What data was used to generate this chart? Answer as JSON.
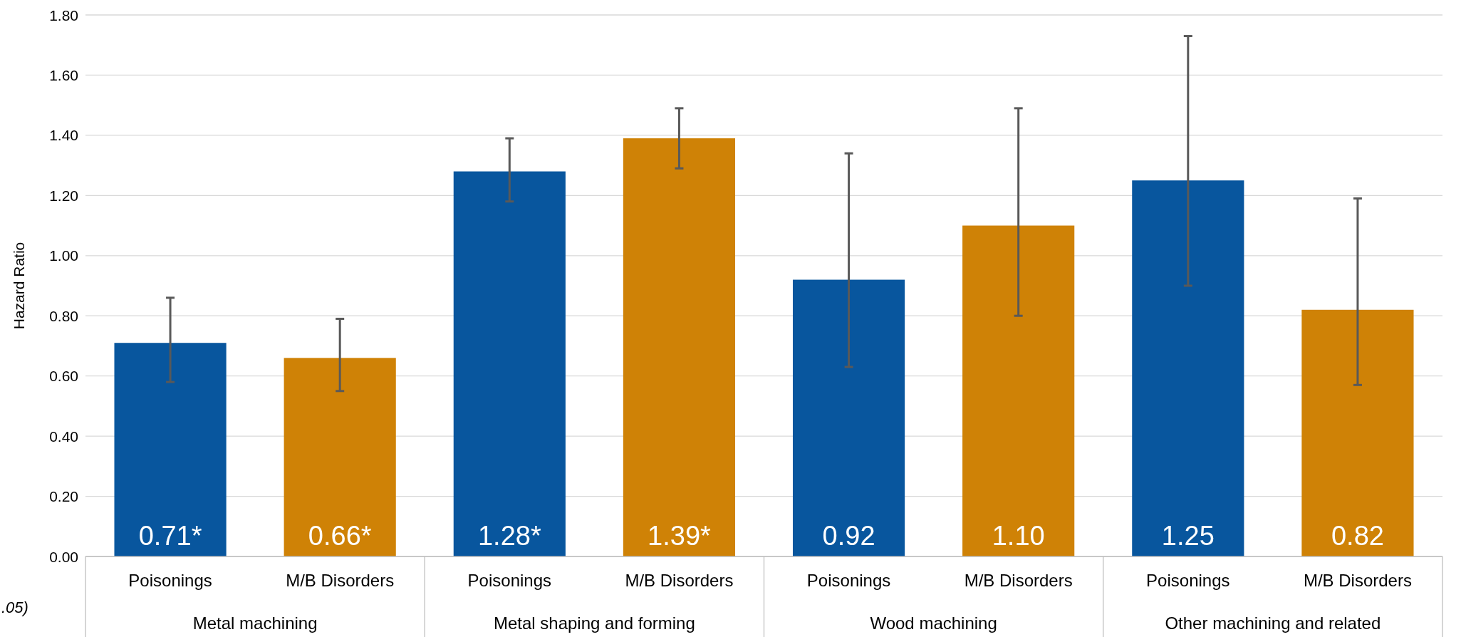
{
  "chart_data": {
    "type": "bar",
    "ylabel": "Hazard Ratio",
    "categories": [
      "Poisonings",
      "M/B Disorders",
      "Poisonings",
      "M/B Disorders",
      "Poisonings",
      "M/B Disorders",
      "Poisonings",
      "M/B Disorders"
    ],
    "values": [
      0.71,
      0.66,
      1.28,
      1.39,
      0.92,
      1.1,
      1.25,
      0.82
    ],
    "colors": [
      "#08569e",
      "#cf8206",
      "#08569e",
      "#cf8206",
      "#08569e",
      "#cf8206",
      "#08569e",
      "#cf8206"
    ],
    "errors": [
      [
        0.58,
        0.86
      ],
      [
        0.55,
        0.79
      ],
      [
        1.18,
        1.39
      ],
      [
        1.29,
        1.49
      ],
      [
        0.63,
        1.34
      ],
      [
        0.8,
        1.49
      ],
      [
        0.9,
        1.73
      ],
      [
        0.57,
        1.19
      ]
    ],
    "value_labels": [
      "0.71*",
      "0.66*",
      "1.28*",
      "1.39*",
      "0.92",
      "1.10",
      "1.25",
      "0.82"
    ],
    "ylim": [
      0,
      1.8
    ],
    "yticks": [
      {
        "value": 0,
        "label": "0.00"
      },
      {
        "value": 0.2,
        "label": "0.20"
      },
      {
        "value": 0.4,
        "label": "0.40"
      },
      {
        "value": 0.6,
        "label": "0.60"
      },
      {
        "value": 0.8,
        "label": "0.80"
      },
      {
        "value": 1,
        "label": "1.00"
      },
      {
        "value": 1.2,
        "label": "1.20"
      },
      {
        "value": 1.4,
        "label": "1.40"
      },
      {
        "value": 1.6,
        "label": "1.60"
      },
      {
        "value": 1.8,
        "label": "1.80"
      }
    ],
    "grid": "y",
    "annotations": [
      "Metal machining",
      "Metal shaping and forming",
      "Wood machining",
      "Other machining and related",
      ".05)"
    ]
  }
}
